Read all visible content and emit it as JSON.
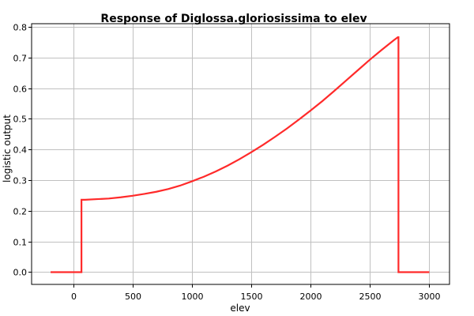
{
  "chart_data": {
    "type": "line",
    "title": "Response of Diglossa.gloriosissima to elev",
    "xlabel": "elev",
    "ylabel": "logistic output",
    "xlim": [
      -350,
      3170
    ],
    "ylim": [
      -0.04,
      0.81
    ],
    "x_ticks": [
      0,
      500,
      1000,
      1500,
      2000,
      2500,
      3000
    ],
    "y_ticks": [
      0.0,
      0.1,
      0.2,
      0.3,
      0.4,
      0.5,
      0.6,
      0.7,
      0.8
    ],
    "x_tick_labels": [
      "0",
      "500",
      "1000",
      "1500",
      "2000",
      "2500",
      "3000"
    ],
    "y_tick_labels": [
      "0.0",
      "0.1",
      "0.2",
      "0.3",
      "0.4",
      "0.5",
      "0.6",
      "0.7",
      "0.8"
    ],
    "grid": true,
    "series": [
      {
        "color": "#ff2a2a",
        "x": [
          -190,
          65,
          70,
          70,
          100,
          200,
          300,
          400,
          500,
          600,
          700,
          800,
          900,
          1000,
          1100,
          1200,
          1300,
          1400,
          1500,
          1600,
          1700,
          1800,
          1900,
          2000,
          2100,
          2200,
          2300,
          2400,
          2500,
          2600,
          2700,
          2735,
          2740,
          2740,
          3000
        ],
        "y": [
          0.0,
          0.0,
          0.0,
          0.236,
          0.236,
          0.238,
          0.24,
          0.244,
          0.249,
          0.255,
          0.262,
          0.271,
          0.282,
          0.296,
          0.311,
          0.328,
          0.347,
          0.368,
          0.391,
          0.415,
          0.441,
          0.468,
          0.497,
          0.527,
          0.558,
          0.591,
          0.625,
          0.659,
          0.693,
          0.725,
          0.756,
          0.766,
          0.766,
          0.0,
          0.0
        ]
      }
    ]
  }
}
